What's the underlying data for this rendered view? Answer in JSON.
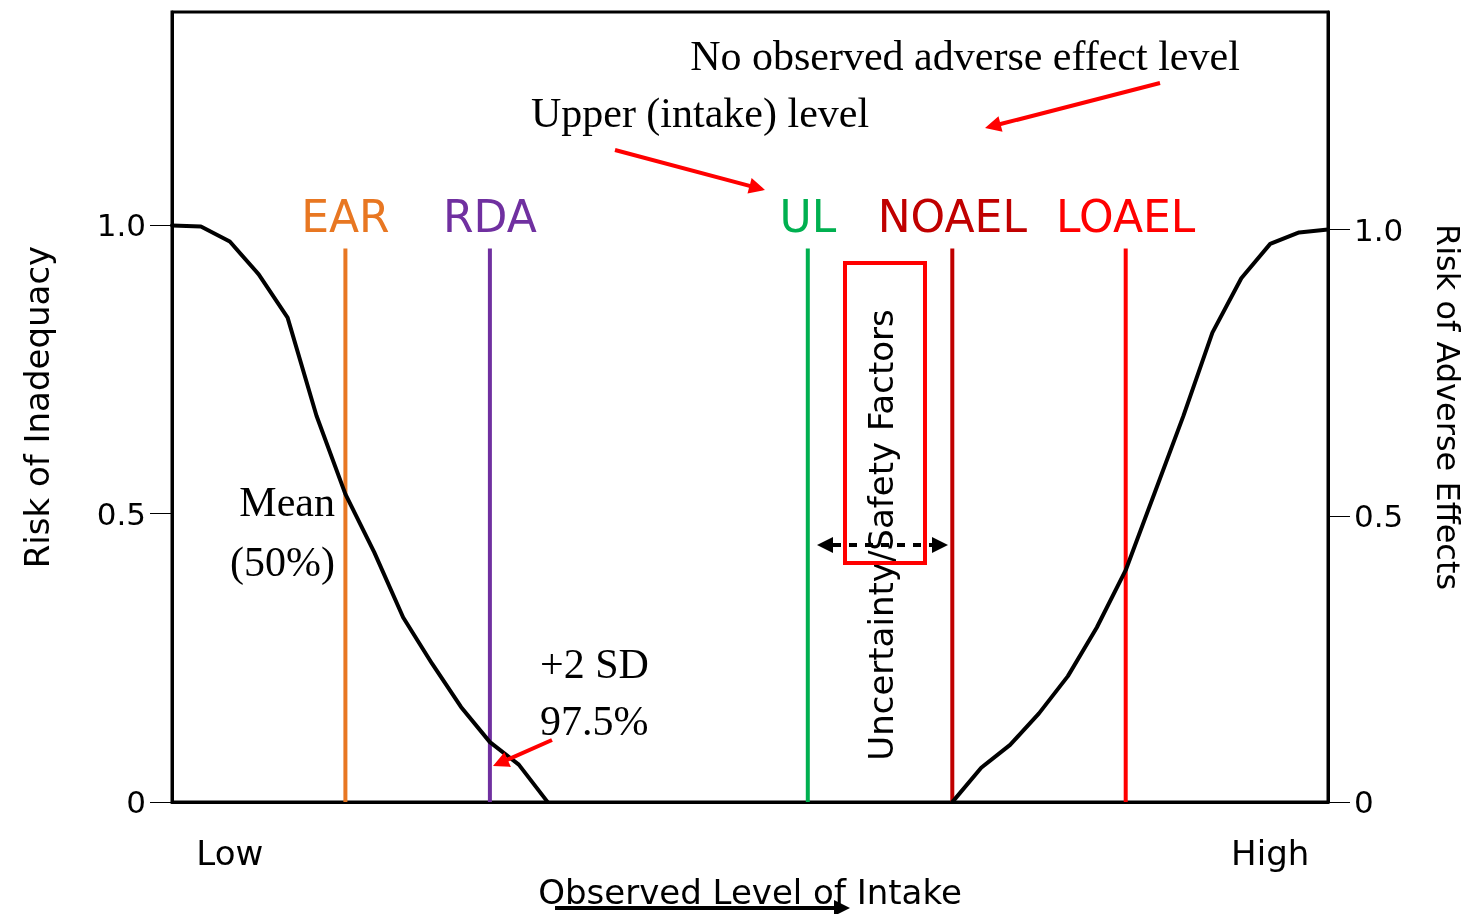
{
  "chart_data": {
    "type": "line",
    "xlabel": "Observed Level of Intake",
    "ylabel": "Risk of Inadequacy",
    "y2label": "Risk of Adverse Effects",
    "categories": [
      null,
      null,
      "Low",
      null,
      null,
      null,
      null,
      null,
      null,
      null,
      null,
      null,
      null,
      null,
      null,
      null,
      null,
      null,
      null,
      null,
      null,
      null,
      null,
      null,
      null,
      null,
      null,
      null,
      null,
      null,
      null,
      null,
      null,
      null,
      null,
      null,
      null,
      null,
      "High",
      null,
      null
    ],
    "ylim": [
      0,
      1.37
    ],
    "yticks": [
      0,
      0.5,
      {
        "value": 1,
        "label": "1.0"
      }
    ],
    "y2lim": [
      0,
      1.38
    ],
    "y2ticks": [
      0,
      0.5,
      {
        "value": 1,
        "label": "1.0"
      }
    ],
    "grid": false,
    "legend": false,
    "marker": "none",
    "line_style": "solid",
    "series": [
      {
        "color": "#000000",
        "values": [
          1.0,
          0.998,
          0.972,
          0.915,
          0.84,
          0.67,
          0.534,
          0.433,
          0.32,
          0.24,
          0.165,
          0.104,
          0.065,
          0,
          null,
          null,
          null,
          null,
          null,
          null,
          null,
          null,
          null,
          null,
          null,
          null,
          null,
          null,
          null,
          null,
          null,
          null,
          null,
          null,
          null,
          null,
          null,
          null,
          null,
          null,
          null
        ]
      },
      {
        "color": "#000000",
        "axis": "y2",
        "values": [
          null,
          null,
          null,
          null,
          null,
          null,
          null,
          null,
          null,
          null,
          null,
          null,
          null,
          null,
          null,
          null,
          null,
          null,
          null,
          null,
          null,
          null,
          null,
          null,
          null,
          null,
          null,
          0,
          0.06,
          0.1,
          0.155,
          0.22,
          0.305,
          0.405,
          0.54,
          0.675,
          0.82,
          0.915,
          0.975,
          0.995,
          1.0
        ]
      },
      {
        "type": "bar",
        "name": "EAR",
        "color": "#e87722",
        "values": [
          null,
          null,
          null,
          null,
          null,
          null,
          0.96,
          null,
          null,
          null,
          null,
          null,
          null,
          null,
          null,
          null,
          null,
          null,
          null,
          null,
          null,
          null,
          null,
          null,
          null,
          null,
          null,
          null,
          null,
          null,
          null,
          null,
          null,
          null,
          null,
          null,
          null,
          null,
          null,
          null,
          null
        ]
      },
      {
        "type": "bar",
        "name": "RDA",
        "color": "#7030a0",
        "values": [
          null,
          null,
          null,
          null,
          null,
          null,
          null,
          null,
          null,
          null,
          null,
          0.96,
          null,
          null,
          null,
          null,
          null,
          null,
          null,
          null,
          null,
          null,
          null,
          null,
          null,
          null,
          null,
          null,
          null,
          null,
          null,
          null,
          null,
          null,
          null,
          null,
          null,
          null,
          null,
          null,
          null
        ]
      },
      {
        "type": "bar",
        "name": "UL",
        "color": "#00b050",
        "values": [
          null,
          null,
          null,
          null,
          null,
          null,
          null,
          null,
          null,
          null,
          null,
          null,
          null,
          null,
          null,
          null,
          null,
          null,
          null,
          null,
          null,
          null,
          0.96,
          null,
          null,
          null,
          null,
          null,
          null,
          null,
          null,
          null,
          null,
          null,
          null,
          null,
          null,
          null,
          null,
          null,
          null
        ]
      },
      {
        "type": "bar",
        "name": "NOAEL",
        "color": "#c00000",
        "values": [
          null,
          null,
          null,
          null,
          null,
          null,
          null,
          null,
          null,
          null,
          null,
          null,
          null,
          null,
          null,
          null,
          null,
          null,
          null,
          null,
          null,
          null,
          null,
          null,
          null,
          null,
          null,
          0.96,
          null,
          null,
          null,
          null,
          null,
          null,
          null,
          null,
          null,
          null,
          null,
          null,
          null
        ]
      },
      {
        "type": "bar",
        "name": "LOAEL",
        "color": "#ff0000",
        "values": [
          null,
          null,
          null,
          null,
          null,
          null,
          null,
          null,
          null,
          null,
          null,
          null,
          null,
          null,
          null,
          null,
          null,
          null,
          null,
          null,
          null,
          null,
          null,
          null,
          null,
          null,
          null,
          null,
          null,
          null,
          null,
          null,
          null,
          0.96,
          null,
          null,
          null,
          null,
          null,
          null,
          null
        ]
      }
    ],
    "annotations": [
      "Mean\n(50%)",
      "+2 SD\n97.5%",
      "Upper (intake) level",
      "No observed adverse effect level",
      "Uncertainty/Safety Factors"
    ]
  }
}
